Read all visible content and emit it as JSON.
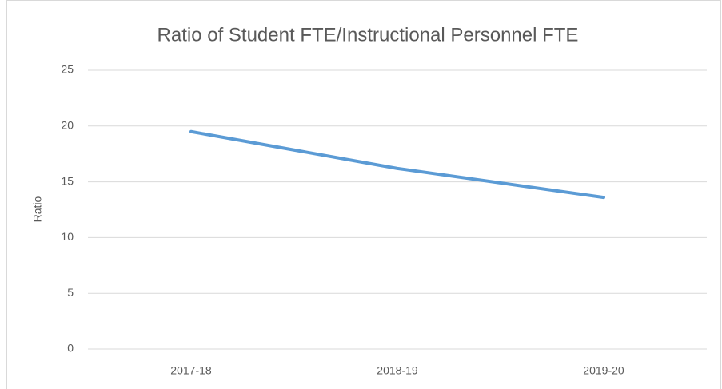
{
  "chart_data": {
    "type": "line",
    "title": "Ratio of Student FTE/Instructional Personnel FTE",
    "y_label": "Ratio",
    "categories": [
      "2017-18",
      "2018-19",
      "2019-20"
    ],
    "series": [
      {
        "name": "Ratio",
        "color": "#5b9bd5",
        "values": [
          19.5,
          16.2,
          13.6
        ]
      }
    ],
    "ylim": [
      0,
      25
    ],
    "yticks": [
      0,
      5,
      10,
      15,
      20,
      25
    ],
    "grid": true
  }
}
